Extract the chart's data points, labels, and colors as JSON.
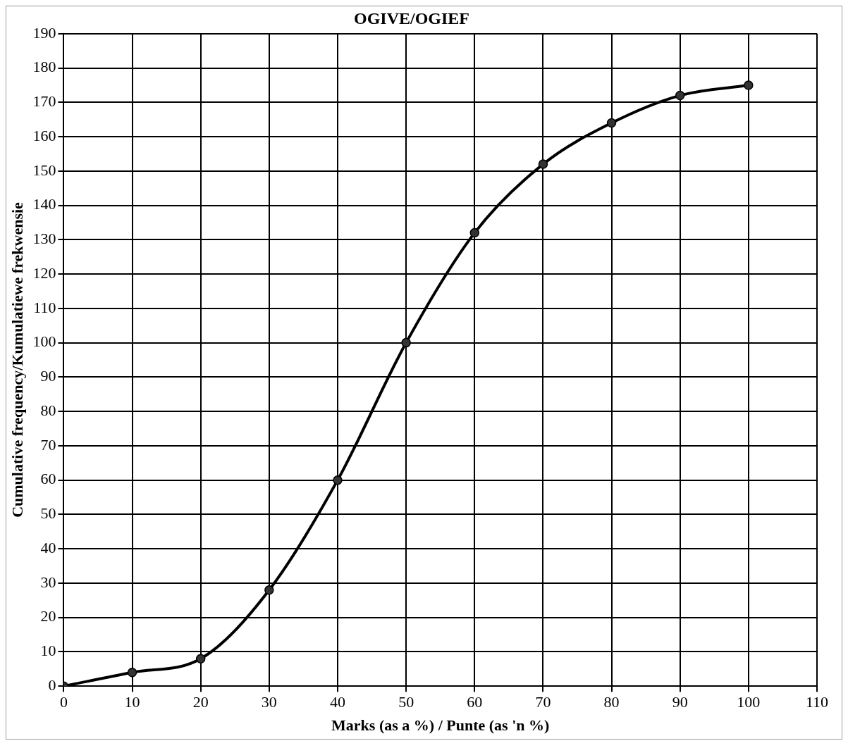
{
  "chart_data": {
    "type": "line",
    "title": "OGIVE/OGIEF",
    "xlabel": "Marks (as a %) / Punte (as 'n %)",
    "ylabel": "Cumulative frequency/Kumulatiewe frekwensie",
    "x": [
      0,
      10,
      20,
      30,
      40,
      50,
      60,
      70,
      80,
      90,
      100
    ],
    "series": [
      {
        "color": "#000000",
        "values": [
          0,
          4,
          8,
          28,
          60,
          100,
          132,
          152,
          164,
          172,
          175
        ]
      }
    ],
    "xlim": [
      0,
      110
    ],
    "xticks": [
      0,
      10,
      20,
      30,
      40,
      50,
      60,
      70,
      80,
      90,
      100,
      110
    ],
    "ylim": [
      0,
      190
    ],
    "yticks": [
      0,
      10,
      20,
      30,
      40,
      50,
      60,
      70,
      80,
      90,
      100,
      110,
      120,
      130,
      140,
      150,
      160,
      170,
      180,
      190
    ],
    "grid": true,
    "legend": false,
    "marker": "circle",
    "line_style": "solid"
  }
}
